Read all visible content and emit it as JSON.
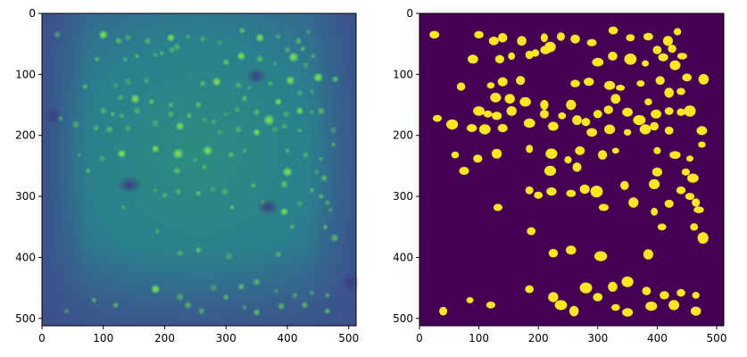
{
  "figure": {
    "panels": [
      {
        "id": "left",
        "content": "fluorescence-microscopy-image",
        "colormap": "viridis",
        "x_ticks": [
          "0",
          "100",
          "200",
          "300",
          "400",
          "500"
        ],
        "y_ticks": [
          "0",
          "100",
          "200",
          "300",
          "400",
          "500"
        ],
        "x_range": [
          0,
          512
        ],
        "y_range": [
          512,
          0
        ]
      },
      {
        "id": "right",
        "content": "binary-segmentation-mask",
        "colors": {
          "background": "#440154",
          "foreground": "#fde725"
        },
        "x_ticks": [
          "0",
          "100",
          "200",
          "300",
          "400",
          "500"
        ],
        "y_ticks": [
          "0",
          "100",
          "200",
          "300",
          "400",
          "500"
        ],
        "x_range": [
          0,
          512
        ],
        "y_range": [
          512,
          0
        ]
      }
    ]
  },
  "cells": [
    [
      25,
      35
    ],
    [
      100,
      35
    ],
    [
      125,
      45
    ],
    [
      140,
      40
    ],
    [
      172,
      45
    ],
    [
      210,
      40
    ],
    [
      238,
      38
    ],
    [
      262,
      42
    ],
    [
      290,
      48
    ],
    [
      326,
      28
    ],
    [
      355,
      40
    ],
    [
      385,
      38
    ],
    [
      418,
      45
    ],
    [
      434,
      30
    ],
    [
      195,
      65
    ],
    [
      220,
      55
    ],
    [
      212,
      60
    ],
    [
      185,
      68
    ],
    [
      325,
      70
    ],
    [
      355,
      75
    ],
    [
      400,
      60
    ],
    [
      425,
      58
    ],
    [
      442,
      70
    ],
    [
      410,
      72
    ],
    [
      90,
      75
    ],
    [
      135,
      75
    ],
    [
      155,
      70
    ],
    [
      300,
      80
    ],
    [
      380,
      82
    ],
    [
      430,
      85
    ],
    [
      70,
      120
    ],
    [
      120,
      118
    ],
    [
      140,
      112
    ],
    [
      170,
      110
    ],
    [
      262,
      115
    ],
    [
      285,
      112
    ],
    [
      320,
      118
    ],
    [
      338,
      122
    ],
    [
      372,
      115
    ],
    [
      405,
      110
    ],
    [
      450,
      105
    ],
    [
      478,
      108
    ],
    [
      128,
      138
    ],
    [
      152,
      140
    ],
    [
      178,
      145
    ],
    [
      210,
      150
    ],
    [
      255,
      150
    ],
    [
      330,
      140
    ],
    [
      385,
      145
    ],
    [
      420,
      130
    ],
    [
      440,
      128
    ],
    [
      100,
      160
    ],
    [
      115,
      165
    ],
    [
      130,
      168
    ],
    [
      155,
      160
    ],
    [
      185,
      180
    ],
    [
      210,
      165
    ],
    [
      240,
      168
    ],
    [
      265,
      175
    ],
    [
      280,
      178
    ],
    [
      300,
      165
    ],
    [
      318,
      158
    ],
    [
      350,
      162
    ],
    [
      370,
      175
    ],
    [
      398,
      165
    ],
    [
      420,
      160
    ],
    [
      440,
      162
    ],
    [
      455,
      160
    ],
    [
      30,
      172
    ],
    [
      55,
      182
    ],
    [
      88,
      188
    ],
    [
      110,
      190
    ],
    [
      140,
      188
    ],
    [
      225,
      185
    ],
    [
      290,
      195
    ],
    [
      320,
      190
    ],
    [
      350,
      195
    ],
    [
      380,
      190
    ],
    [
      395,
      185
    ],
    [
      420,
      192
    ],
    [
      475,
      192
    ],
    [
      60,
      232
    ],
    [
      98,
      238
    ],
    [
      130,
      230
    ],
    [
      185,
      222
    ],
    [
      222,
      230
    ],
    [
      250,
      240
    ],
    [
      270,
      225
    ],
    [
      308,
      232
    ],
    [
      330,
      225
    ],
    [
      400,
      225
    ],
    [
      430,
      232
    ],
    [
      455,
      238
    ],
    [
      475,
      215
    ],
    [
      75,
      258
    ],
    [
      220,
      258
    ],
    [
      265,
      252
    ],
    [
      400,
      260
    ],
    [
      448,
      260
    ],
    [
      460,
      270
    ],
    [
      185,
      290
    ],
    [
      200,
      298
    ],
    [
      222,
      292
    ],
    [
      255,
      295
    ],
    [
      278,
      288
    ],
    [
      298,
      292
    ],
    [
      345,
      282
    ],
    [
      395,
      280
    ],
    [
      440,
      290
    ],
    [
      455,
      300
    ],
    [
      465,
      310
    ],
    [
      132,
      318
    ],
    [
      310,
      318
    ],
    [
      360,
      310
    ],
    [
      395,
      325
    ],
    [
      420,
      312
    ],
    [
      470,
      322
    ],
    [
      188,
      357
    ],
    [
      408,
      350
    ],
    [
      462,
      350
    ],
    [
      477,
      368
    ],
    [
      225,
      393
    ],
    [
      255,
      388
    ],
    [
      305,
      398
    ],
    [
      385,
      395
    ],
    [
      185,
      452
    ],
    [
      225,
      465
    ],
    [
      280,
      450
    ],
    [
      300,
      465
    ],
    [
      325,
      448
    ],
    [
      350,
      440
    ],
    [
      382,
      455
    ],
    [
      412,
      462
    ],
    [
      440,
      458
    ],
    [
      465,
      462
    ],
    [
      40,
      488
    ],
    [
      85,
      470
    ],
    [
      120,
      478
    ],
    [
      238,
      478
    ],
    [
      260,
      488
    ],
    [
      330,
      482
    ],
    [
      350,
      490
    ],
    [
      390,
      480
    ],
    [
      428,
      478
    ],
    [
      465,
      488
    ]
  ]
}
